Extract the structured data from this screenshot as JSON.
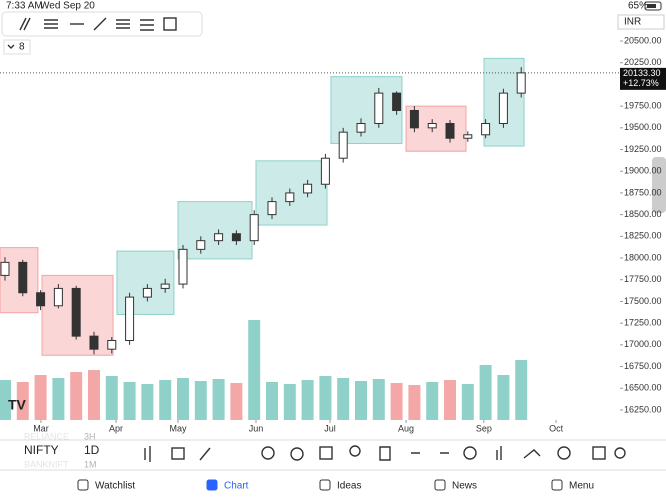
{
  "status": {
    "time": "7:33 AM",
    "date": "Wed Sep 20",
    "battery": "65%"
  },
  "currency": "INR",
  "indicator_count": 8,
  "chart_data": {
    "type": "candlestick",
    "x": [
      0,
      1,
      2,
      3,
      4,
      5,
      6,
      7,
      8,
      9,
      10,
      11,
      12,
      13,
      14,
      15,
      16,
      17,
      18,
      19,
      20,
      21,
      22,
      23,
      24,
      25,
      26,
      27,
      28,
      29
    ],
    "open": [
      17800,
      17950,
      17600,
      17450,
      17650,
      17100,
      16950,
      17050,
      17550,
      17650,
      17700,
      18100,
      18200,
      18280,
      18200,
      18500,
      18650,
      18750,
      18850,
      19150,
      19450,
      19550,
      19900,
      19700,
      19500,
      19550,
      19380,
      19420,
      19550,
      19900
    ],
    "high": [
      18010,
      17980,
      17630,
      17700,
      17680,
      17150,
      17090,
      17600,
      17700,
      17760,
      18150,
      18250,
      18330,
      18320,
      18550,
      18700,
      18800,
      18900,
      19200,
      19500,
      19610,
      19960,
      19920,
      19750,
      19600,
      19590,
      19460,
      19600,
      19950,
      20200
    ],
    "low": [
      17740,
      17560,
      17400,
      17420,
      17060,
      16890,
      16900,
      17000,
      17500,
      17600,
      17650,
      18050,
      18150,
      18150,
      18150,
      18450,
      18600,
      18700,
      18800,
      19100,
      19400,
      19500,
      19650,
      19450,
      19450,
      19330,
      19340,
      19380,
      19500,
      19850
    ],
    "close": [
      17950,
      17600,
      17450,
      17650,
      17100,
      16950,
      17050,
      17550,
      17650,
      17700,
      18100,
      18200,
      18280,
      18200,
      18500,
      18650,
      18750,
      18850,
      19150,
      19450,
      19550,
      19900,
      19700,
      19500,
      19550,
      19380,
      19420,
      19550,
      19900,
      20133
    ],
    "volume": [
      40,
      38,
      45,
      42,
      48,
      50,
      44,
      38,
      36,
      40,
      42,
      39,
      41,
      37,
      100,
      38,
      36,
      40,
      44,
      42,
      39,
      41,
      37,
      35,
      38,
      40,
      36,
      55,
      45,
      60
    ],
    "up_color": "#ffffff",
    "down_color": "#333333",
    "volume_up_color": "#8fd1c9",
    "volume_down_color": "#f4a7a7",
    "boxes": [
      {
        "x": [
          -0.28,
          1.85
        ],
        "price": [
          17370,
          18120
        ],
        "color": "#f4a3a3"
      },
      {
        "x": [
          2.08,
          6.07
        ],
        "price": [
          16880,
          17800
        ],
        "color": "#f4a3a3"
      },
      {
        "x": [
          6.29,
          9.49
        ],
        "price": [
          17350,
          18080
        ],
        "color": "#8fd1c9"
      },
      {
        "x": [
          9.72,
          13.88
        ],
        "price": [
          17990,
          18650
        ],
        "color": "#8fd1c9"
      },
      {
        "x": [
          14.1,
          18.09
        ],
        "price": [
          18380,
          19120
        ],
        "color": "#8fd1c9"
      },
      {
        "x": [
          18.31,
          22.3
        ],
        "price": [
          19320,
          20090
        ],
        "color": "#8fd1c9"
      },
      {
        "x": [
          22.53,
          25.9
        ],
        "price": [
          19230,
          19750
        ],
        "color": "#f4a3a3"
      },
      {
        "x": [
          26.91,
          29.16
        ],
        "price": [
          19290,
          20300
        ],
        "color": "#8fd1c9"
      }
    ],
    "last_price": {
      "value": 20133.3,
      "label": "20133.30"
    },
    "change": "+12.73%",
    "xlim": [
      -0.28,
      34.55
    ],
    "ylim": [
      16134,
      20558
    ],
    "xticks": [
      {
        "value": 2.02,
        "label": "Mar"
      },
      {
        "value": 6.24,
        "label": "Apr"
      },
      {
        "value": 9.72,
        "label": "May"
      },
      {
        "value": 14.1,
        "label": "Jun"
      },
      {
        "value": 18.26,
        "label": "Jul"
      },
      {
        "value": 22.53,
        "label": "Aug"
      },
      {
        "value": 26.9,
        "label": "Sep"
      },
      {
        "value": 30.96,
        "label": "Oct"
      }
    ],
    "yticks": [
      {
        "value": 16250,
        "label": "16250.00"
      },
      {
        "value": 16500,
        "label": "16500.00"
      },
      {
        "value": 16750,
        "label": "16750.00"
      },
      {
        "value": 17000,
        "label": "17000.00"
      },
      {
        "value": 17250,
        "label": "17250.00"
      },
      {
        "value": 17500,
        "label": "17500.00"
      },
      {
        "value": 17750,
        "label": "17750.00"
      },
      {
        "value": 18000,
        "label": "18000.00"
      },
      {
        "value": 18250,
        "label": "18250.00"
      },
      {
        "value": 18500,
        "label": "18500.00"
      },
      {
        "value": 18750,
        "label": "18750.00"
      },
      {
        "value": 19000,
        "label": "19000.00"
      },
      {
        "value": 19250,
        "label": "19250.00"
      },
      {
        "value": 19500,
        "label": "19500.00"
      },
      {
        "value": 19750,
        "label": "19750.00"
      },
      {
        "value": 20000,
        "label": "20000.00"
      },
      {
        "value": 20250,
        "label": "20250.00"
      },
      {
        "value": 20500,
        "label": "20500.00"
      }
    ]
  },
  "watchlist": [
    {
      "symbol": "RELIANCE",
      "interval": "3H"
    },
    {
      "symbol": "NIFTY",
      "interval": "1D"
    },
    {
      "symbol": "BANKNIFT",
      "interval": "1M"
    }
  ],
  "tabs": [
    "Watchlist",
    "Chart",
    "Ideas",
    "News",
    "Menu"
  ]
}
